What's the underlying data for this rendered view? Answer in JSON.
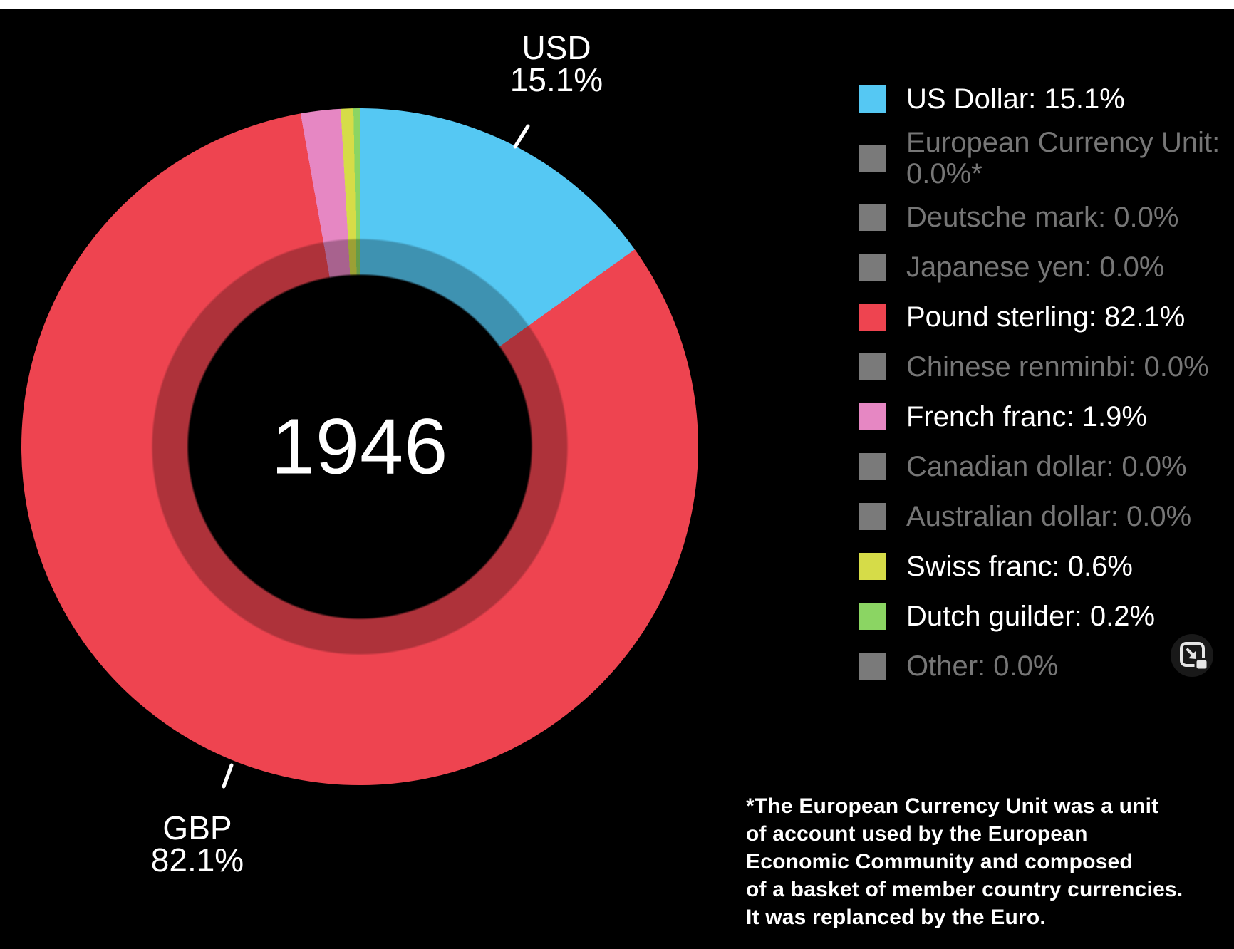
{
  "page": {
    "background": "#000000",
    "top_strip_color": "#ffffff"
  },
  "chart_data": {
    "type": "pie",
    "subtype": "donut",
    "center_label": "1946",
    "unit": "%",
    "legend_position": "right",
    "grid": false,
    "slices": [
      {
        "name": "US Dollar",
        "value": 15.1,
        "color": "#55c8f3",
        "dimmed": false
      },
      {
        "name": "European Currency Unit",
        "value": 0.0,
        "color": "#7a7a7a",
        "dimmed": true,
        "footnote_marker": "*"
      },
      {
        "name": "Deutsche mark",
        "value": 0.0,
        "color": "#7a7a7a",
        "dimmed": true
      },
      {
        "name": "Japanese yen",
        "value": 0.0,
        "color": "#7a7a7a",
        "dimmed": true
      },
      {
        "name": "Pound sterling",
        "value": 82.1,
        "color": "#ee4450",
        "dimmed": false
      },
      {
        "name": "Chinese renminbi",
        "value": 0.0,
        "color": "#7a7a7a",
        "dimmed": true
      },
      {
        "name": "French franc",
        "value": 1.9,
        "color": "#e687c3",
        "dimmed": false
      },
      {
        "name": "Canadian dollar",
        "value": 0.0,
        "color": "#7a7a7a",
        "dimmed": true
      },
      {
        "name": "Australian dollar",
        "value": 0.0,
        "color": "#7a7a7a",
        "dimmed": true
      },
      {
        "name": "Swiss franc",
        "value": 0.6,
        "color": "#d6dc48",
        "dimmed": false
      },
      {
        "name": "Dutch guilder",
        "value": 0.2,
        "color": "#8bd563",
        "dimmed": false
      },
      {
        "name": "Other",
        "value": 0.0,
        "color": "#7a7a7a",
        "dimmed": true
      }
    ],
    "callouts": [
      {
        "label": "USD",
        "value": "15.1%",
        "position": "top"
      },
      {
        "label": "GBP",
        "value": "82.1%",
        "position": "bottom-left"
      }
    ]
  },
  "legend": {
    "items": [
      {
        "lines": [
          "US Dollar: 15.1%"
        ],
        "color": "#55c8f3",
        "dimmed": false
      },
      {
        "lines": [
          "European Currency Unit:",
          "0.0%*"
        ],
        "color": "#7a7a7a",
        "dimmed": true
      },
      {
        "lines": [
          "Deutsche mark: 0.0%"
        ],
        "color": "#7a7a7a",
        "dimmed": true
      },
      {
        "lines": [
          "Japanese yen: 0.0%"
        ],
        "color": "#7a7a7a",
        "dimmed": true
      },
      {
        "lines": [
          "Pound sterling: 82.1%"
        ],
        "color": "#ee4450",
        "dimmed": false
      },
      {
        "lines": [
          "Chinese renminbi: 0.0%"
        ],
        "color": "#7a7a7a",
        "dimmed": true
      },
      {
        "lines": [
          "French franc: 1.9%"
        ],
        "color": "#e687c3",
        "dimmed": false
      },
      {
        "lines": [
          "Canadian dollar: 0.0%"
        ],
        "color": "#7a7a7a",
        "dimmed": true
      },
      {
        "lines": [
          "Australian dollar: 0.0%"
        ],
        "color": "#7a7a7a",
        "dimmed": true
      },
      {
        "lines": [
          "Swiss franc: 0.6%"
        ],
        "color": "#d6dc48",
        "dimmed": false
      },
      {
        "lines": [
          "Dutch guilder: 0.2%"
        ],
        "color": "#8bd563",
        "dimmed": false
      },
      {
        "lines": [
          "Other: 0.0%"
        ],
        "color": "#7a7a7a",
        "dimmed": true
      }
    ]
  },
  "footnote": {
    "lines": [
      "*The European Currency Unit was a unit",
      "of account used by the European",
      "Economic Community and composed",
      "of a basket of member country currencies.",
      "It was replanced by the Euro."
    ]
  },
  "icons": {
    "pop_out": "pop-out-icon"
  }
}
